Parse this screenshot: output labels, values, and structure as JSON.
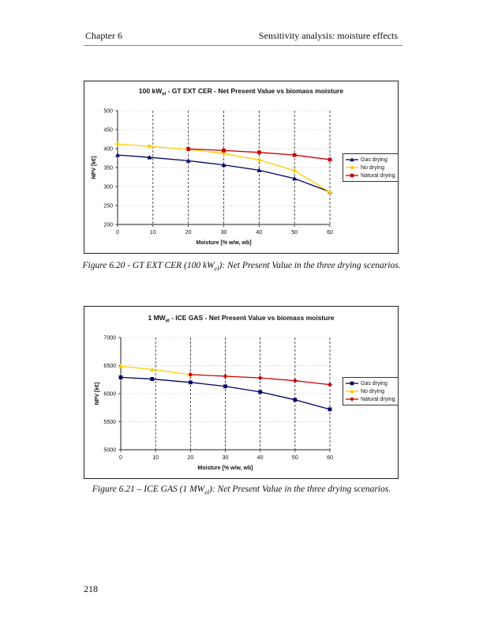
{
  "header": {
    "chapter": "Chapter 6",
    "section": "Sensitivity analysis: moisture effects"
  },
  "figure1": {
    "title_pre": "100 kW",
    "title_sub": "el",
    "title_post": " - GT EXT CER -  Net Present Value vs biomass moisture",
    "caption_pre": "Figure 6.20 - GT EXT CER (100 kW",
    "caption_sub": "el",
    "caption_post": "): Net Present Value in the three drying scenarios."
  },
  "figure2": {
    "title_pre": "1 MW",
    "title_sub": "el",
    "title_post": " - ICE GAS - Net Present Value vs biomass moisture",
    "caption_pre": "Figure 6.21 – ICE GAS (1 MW",
    "caption_sub": "el",
    "caption_post": "): Net Present Value in the three drying scenarios."
  },
  "page_number": "218",
  "chart_data": [
    {
      "type": "line",
      "title": "100 kWel - GT EXT CER -  Net Present Value vs biomass moisture",
      "xlabel": "Moisture [% w/w, wb]",
      "ylabel": "NPV [k€]",
      "xlim": [
        0,
        60
      ],
      "ylim": [
        200,
        500
      ],
      "xticks": [
        0,
        10,
        20,
        30,
        40,
        50,
        60
      ],
      "yticks": [
        200,
        250,
        300,
        350,
        400,
        450,
        500
      ],
      "legend_position": "right",
      "series": [
        {
          "name": "Gas drying",
          "color": "#000066",
          "marker": "triangle",
          "x": [
            0,
            9,
            20,
            30,
            40,
            50,
            60
          ],
          "y": [
            383,
            377,
            368,
            357,
            343,
            321,
            286
          ]
        },
        {
          "name": "No drying",
          "color": "#ffcc00",
          "marker": "diamond",
          "x": [
            0,
            9,
            20,
            30,
            40,
            50,
            60
          ],
          "y": [
            412,
            406,
            398,
            387,
            370,
            342,
            285
          ]
        },
        {
          "name": "Natural drying",
          "color": "#cc0000",
          "marker": "square",
          "x": [
            20,
            30,
            40,
            50,
            60
          ],
          "y": [
            399,
            395,
            390,
            383,
            371
          ]
        }
      ]
    },
    {
      "type": "line",
      "title": "1 MWel - ICE GAS - Net Present Value vs biomass moisture",
      "xlabel": "Moisture [% w/w, wb]",
      "ylabel": "NPV [k€]",
      "xlim": [
        0,
        60
      ],
      "ylim": [
        5000,
        7000
      ],
      "xticks": [
        0,
        10,
        20,
        30,
        40,
        50,
        60
      ],
      "yticks": [
        5000,
        5500,
        6000,
        6500,
        7000
      ],
      "legend_position": "right",
      "series": [
        {
          "name": "Gas drying",
          "color": "#000066",
          "marker": "square",
          "x": [
            0,
            9,
            20,
            30,
            40,
            50,
            60
          ],
          "y": [
            6290,
            6260,
            6200,
            6130,
            6030,
            5890,
            5720
          ]
        },
        {
          "name": "No drying",
          "color": "#ffcc00",
          "marker": "triangle",
          "x": [
            0,
            9,
            20
          ],
          "y": [
            6490,
            6430,
            6340
          ]
        },
        {
          "name": "Natural drying",
          "color": "#cc0000",
          "marker": "diamond",
          "x": [
            20,
            30,
            40,
            50,
            60
          ],
          "y": [
            6340,
            6310,
            6280,
            6230,
            6160
          ]
        }
      ]
    }
  ]
}
